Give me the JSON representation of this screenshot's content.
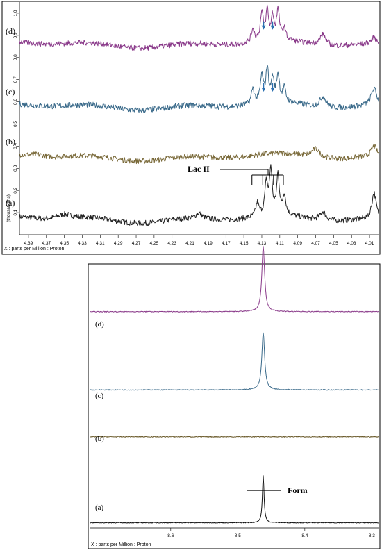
{
  "chart_data": [
    {
      "type": "line",
      "panel": "top",
      "xlabel": "X : parts per Million : Proton",
      "ylabel": "(thousandths)",
      "x_reversed": true,
      "xlim": [
        4.4,
        4.0
      ],
      "ylim": [
        0,
        1.05
      ],
      "x_ticks": [
        "4.39",
        "4.37",
        "4.35",
        "4.33",
        "4.31",
        "4.29",
        "4.27",
        "4.25",
        "4.23",
        "4.21",
        "4.19",
        "4.17",
        "4.15",
        "4.13",
        "4.11",
        "4.09",
        "4.07",
        "4.05",
        "4.03",
        "4.01"
      ],
      "y_ticks": [
        "0.1",
        "0.2",
        "0.3",
        "0.4",
        "0.5",
        "0.6",
        "0.7",
        "0.8",
        "0.9",
        "1.0"
      ],
      "annotation": "Lac II",
      "series": [
        {
          "name": "(a)",
          "color": "#222222",
          "baseline": 0.07,
          "noise": 0.012,
          "peaks": [
            [
              4.125,
              0.14,
              0.002
            ],
            [
              4.12,
              0.2,
              0.0018
            ],
            [
              4.112,
              0.18,
              0.0018
            ],
            [
              4.105,
              0.09,
              0.002
            ],
            [
              4.135,
              0.06,
              0.002
            ],
            [
              4.062,
              0.04,
              0.004
            ],
            [
              4.005,
              0.12,
              0.003
            ],
            [
              4.2,
              0.025,
              0.004
            ],
            [
              4.35,
              0.02,
              0.01
            ]
          ]
        },
        {
          "name": "(b)",
          "color": "#7a6a3a",
          "baseline": 0.35,
          "noise": 0.012,
          "peaks": [
            [
              4.07,
              0.04,
              0.006
            ],
            [
              4.005,
              0.05,
              0.004
            ],
            [
              4.38,
              0.01,
              0.01
            ]
          ]
        },
        {
          "name": "(c)",
          "color": "#3a6a8a",
          "baseline": 0.58,
          "noise": 0.013,
          "peaks": [
            [
              4.13,
              0.12,
              0.002
            ],
            [
              4.124,
              0.15,
              0.0018
            ],
            [
              4.118,
              0.1,
              0.0018
            ],
            [
              4.112,
              0.12,
              0.002
            ],
            [
              4.105,
              0.06,
              0.002
            ],
            [
              4.14,
              0.07,
              0.002
            ],
            [
              4.062,
              0.05,
              0.004
            ],
            [
              4.005,
              0.08,
              0.004
            ]
          ]
        },
        {
          "name": "(d)",
          "color": "#8a3a8a",
          "baseline": 0.86,
          "noise": 0.012,
          "peaks": [
            [
              4.13,
              0.12,
              0.002
            ],
            [
              4.124,
              0.13,
              0.0018
            ],
            [
              4.118,
              0.1,
              0.0018
            ],
            [
              4.112,
              0.13,
              0.002
            ],
            [
              4.105,
              0.05,
              0.002
            ],
            [
              4.14,
              0.06,
              0.002
            ],
            [
              4.062,
              0.05,
              0.004
            ],
            [
              4.005,
              0.03,
              0.004
            ]
          ]
        }
      ],
      "arrows": {
        "color": "#2a6fb0",
        "positions": [
          [
            4.128,
            0.935
          ],
          [
            4.118,
            0.935
          ],
          [
            4.128,
            0.655
          ],
          [
            4.118,
            0.655
          ]
        ]
      },
      "lac_markers": [
        4.141,
        4.129,
        4.117,
        4.106
      ]
    },
    {
      "type": "line",
      "panel": "bottom",
      "xlabel": "X : parts per Million : Proton",
      "x_reversed": true,
      "xlim": [
        8.72,
        8.29
      ],
      "ylim": [
        0,
        1.0
      ],
      "x_ticks": [
        "8.6",
        "8.5",
        "8.4",
        "8.3"
      ],
      "annotation": "Form",
      "series": [
        {
          "name": "(a)",
          "color": "#111111",
          "baseline": 0.02,
          "peak_center": 8.462,
          "peak_height": 0.18,
          "peak_width": 0.0015
        },
        {
          "name": "(b)",
          "color": "#6a5a2a",
          "baseline": 0.35,
          "peak_center": 8.462,
          "peak_height": 0.0,
          "peak_width": 0.0015
        },
        {
          "name": "(c)",
          "color": "#3a6a8a",
          "baseline": 0.53,
          "peak_center": 8.462,
          "peak_height": 0.22,
          "peak_width": 0.0025
        },
        {
          "name": "(d)",
          "color": "#8a3a8a",
          "baseline": 0.83,
          "peak_center": 8.462,
          "peak_height": 0.25,
          "peak_width": 0.0025
        }
      ]
    }
  ]
}
